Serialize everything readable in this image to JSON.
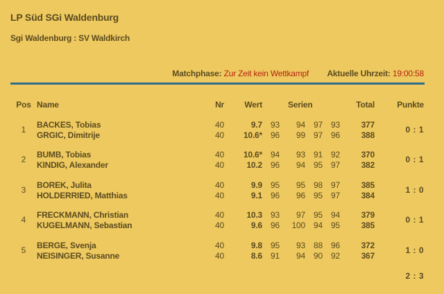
{
  "header": {
    "title": "LP Süd SGi Waldenburg",
    "subtitle": "Sgi Waldenburg : SV Waldkirch",
    "matchphase_label": "Matchphase:",
    "matchphase_value": "Zur Zeit kein Wettkampf",
    "time_label": "Aktuelle Uhrzeit:",
    "time_value": "19:00:58"
  },
  "colors": {
    "background": "#EEC95F",
    "text": "#5b4b1f",
    "accent_red": "#b3220e",
    "rule_blue": "#2c6e8c"
  },
  "table": {
    "columns": {
      "pos": "Pos",
      "name": "Name",
      "nr": "Nr",
      "wert": "Wert",
      "serien": "Serien",
      "total": "Total",
      "punkte": "Punkte"
    },
    "pairings": [
      {
        "pos": "1",
        "punkte": "0 : 1",
        "shooters": [
          {
            "name": "BACKES, Tobias",
            "nr": "40",
            "wert": "9.7",
            "serien": [
              "93",
              "94",
              "97",
              "93"
            ],
            "total": "377"
          },
          {
            "name": "GRGIC, Dimitrije",
            "nr": "40",
            "wert": "10.6*",
            "serien": [
              "96",
              "99",
              "97",
              "96"
            ],
            "total": "388"
          }
        ]
      },
      {
        "pos": "2",
        "punkte": "0 : 1",
        "shooters": [
          {
            "name": "BUMB, Tobias",
            "nr": "40",
            "wert": "10.6*",
            "serien": [
              "94",
              "93",
              "91",
              "92"
            ],
            "total": "370"
          },
          {
            "name": "KINDIG, Alexander",
            "nr": "40",
            "wert": "10.2",
            "serien": [
              "96",
              "94",
              "95",
              "97"
            ],
            "total": "382"
          }
        ]
      },
      {
        "pos": "3",
        "punkte": "1 : 0",
        "shooters": [
          {
            "name": "BOREK, Julita",
            "nr": "40",
            "wert": "9.9",
            "serien": [
              "95",
              "95",
              "98",
              "97"
            ],
            "total": "385"
          },
          {
            "name": "HOLDERRIED, Matthias",
            "nr": "40",
            "wert": "9.1",
            "serien": [
              "96",
              "96",
              "95",
              "97"
            ],
            "total": "384"
          }
        ]
      },
      {
        "pos": "4",
        "punkte": "0 : 1",
        "shooters": [
          {
            "name": "FRECKMANN, Christian",
            "nr": "40",
            "wert": "10.3",
            "serien": [
              "93",
              "97",
              "95",
              "94"
            ],
            "total": "379"
          },
          {
            "name": "KUGELMANN, Sebastian",
            "nr": "40",
            "wert": "9.6",
            "serien": [
              "96",
              "100",
              "94",
              "95"
            ],
            "total": "385"
          }
        ]
      },
      {
        "pos": "5",
        "punkte": "1 : 0",
        "shooters": [
          {
            "name": "BERGE, Svenja",
            "nr": "40",
            "wert": "9.8",
            "serien": [
              "95",
              "93",
              "88",
              "96"
            ],
            "total": "372"
          },
          {
            "name": "NEISINGER, Susanne",
            "nr": "40",
            "wert": "8.6",
            "serien": [
              "91",
              "94",
              "90",
              "92"
            ],
            "total": "367"
          }
        ]
      }
    ],
    "final_score": "2 : 3"
  }
}
